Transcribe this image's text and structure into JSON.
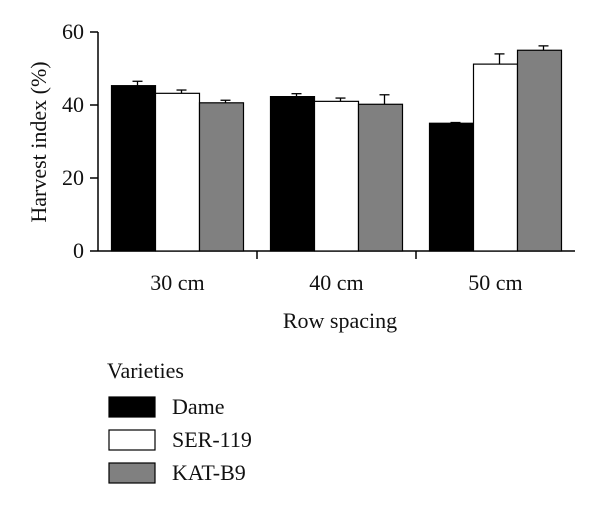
{
  "chart_data": {
    "type": "bar",
    "title": "",
    "xlabel": "Row spacing",
    "ylabel": "Harvest index (%)",
    "categories": [
      "30 cm",
      "40 cm",
      "50 cm"
    ],
    "ylim": [
      0,
      60
    ],
    "yticks": [
      0,
      20,
      40,
      60
    ],
    "series": [
      {
        "name": "Dame",
        "color": "#000000",
        "values": [
          45.3,
          42.3,
          35.0
        ],
        "errors": [
          1.2,
          0.8,
          0.2
        ]
      },
      {
        "name": "SER-119",
        "color": "#ffffff",
        "values": [
          43.2,
          41.0,
          51.2
        ],
        "errors": [
          0.9,
          0.9,
          2.8
        ]
      },
      {
        "name": "KAT-B9",
        "color": "#808080",
        "values": [
          40.6,
          40.2,
          55.0
        ],
        "errors": [
          0.7,
          2.6,
          1.2
        ]
      }
    ],
    "legend": {
      "title": "Varieties",
      "position": "bottom-left"
    },
    "grid": false
  }
}
